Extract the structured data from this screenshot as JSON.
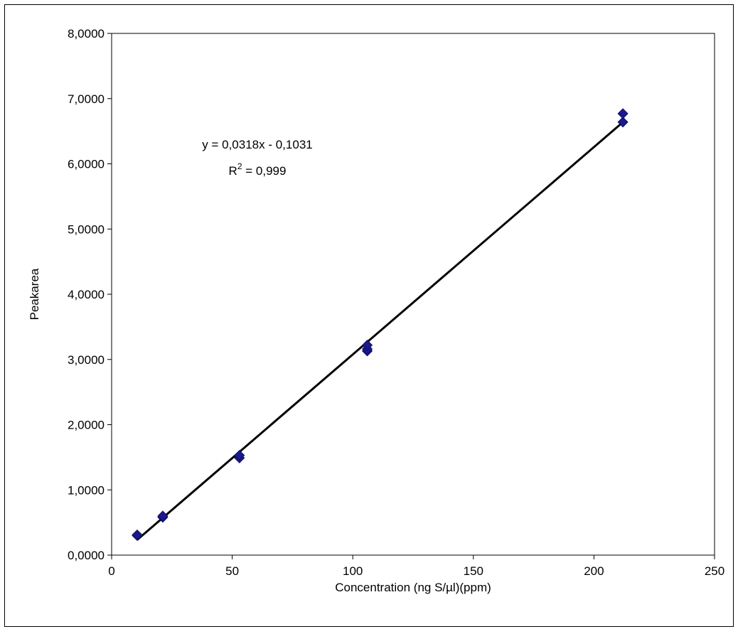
{
  "chart_data": {
    "type": "scatter",
    "title": "",
    "xlabel": "Concentration (ng S/µl)(ppm)",
    "ylabel": "Peakarea",
    "xlim": [
      0,
      250
    ],
    "ylim": [
      0,
      8
    ],
    "x_ticks": [
      0,
      50,
      100,
      150,
      200,
      250
    ],
    "x_tick_labels": [
      "0",
      "50",
      "100",
      "150",
      "200",
      "250"
    ],
    "y_ticks": [
      0,
      1,
      2,
      3,
      4,
      5,
      6,
      7,
      8
    ],
    "y_tick_labels": [
      "0,0000",
      "1,0000",
      "2,0000",
      "3,0000",
      "4,0000",
      "5,0000",
      "6,0000",
      "7,0000",
      "8,0000"
    ],
    "grid": false,
    "legend": "none",
    "series": [
      {
        "marker": "diamond",
        "color": "#1a1a8c",
        "points": [
          {
            "x": 10.6,
            "y": 0.3
          },
          {
            "x": 10.6,
            "y": 0.31
          },
          {
            "x": 21.2,
            "y": 0.58
          },
          {
            "x": 21.2,
            "y": 0.6
          },
          {
            "x": 53.0,
            "y": 1.49
          },
          {
            "x": 53.0,
            "y": 1.53
          },
          {
            "x": 106.0,
            "y": 3.13
          },
          {
            "x": 106.0,
            "y": 3.16
          },
          {
            "x": 106.0,
            "y": 3.22
          },
          {
            "x": 212.0,
            "y": 6.64
          },
          {
            "x": 212.0,
            "y": 6.77
          }
        ]
      }
    ],
    "trendline": {
      "type": "linear",
      "slope": 0.0318,
      "intercept": -0.1031,
      "x_range": [
        10.6,
        212.0
      ],
      "color": "#000000"
    },
    "annotations": {
      "equation": "y = 0,0318x - 0,1031",
      "r2_prefix": "R",
      "r2_superscript": "2",
      "r2_value": " = 0,999"
    }
  }
}
